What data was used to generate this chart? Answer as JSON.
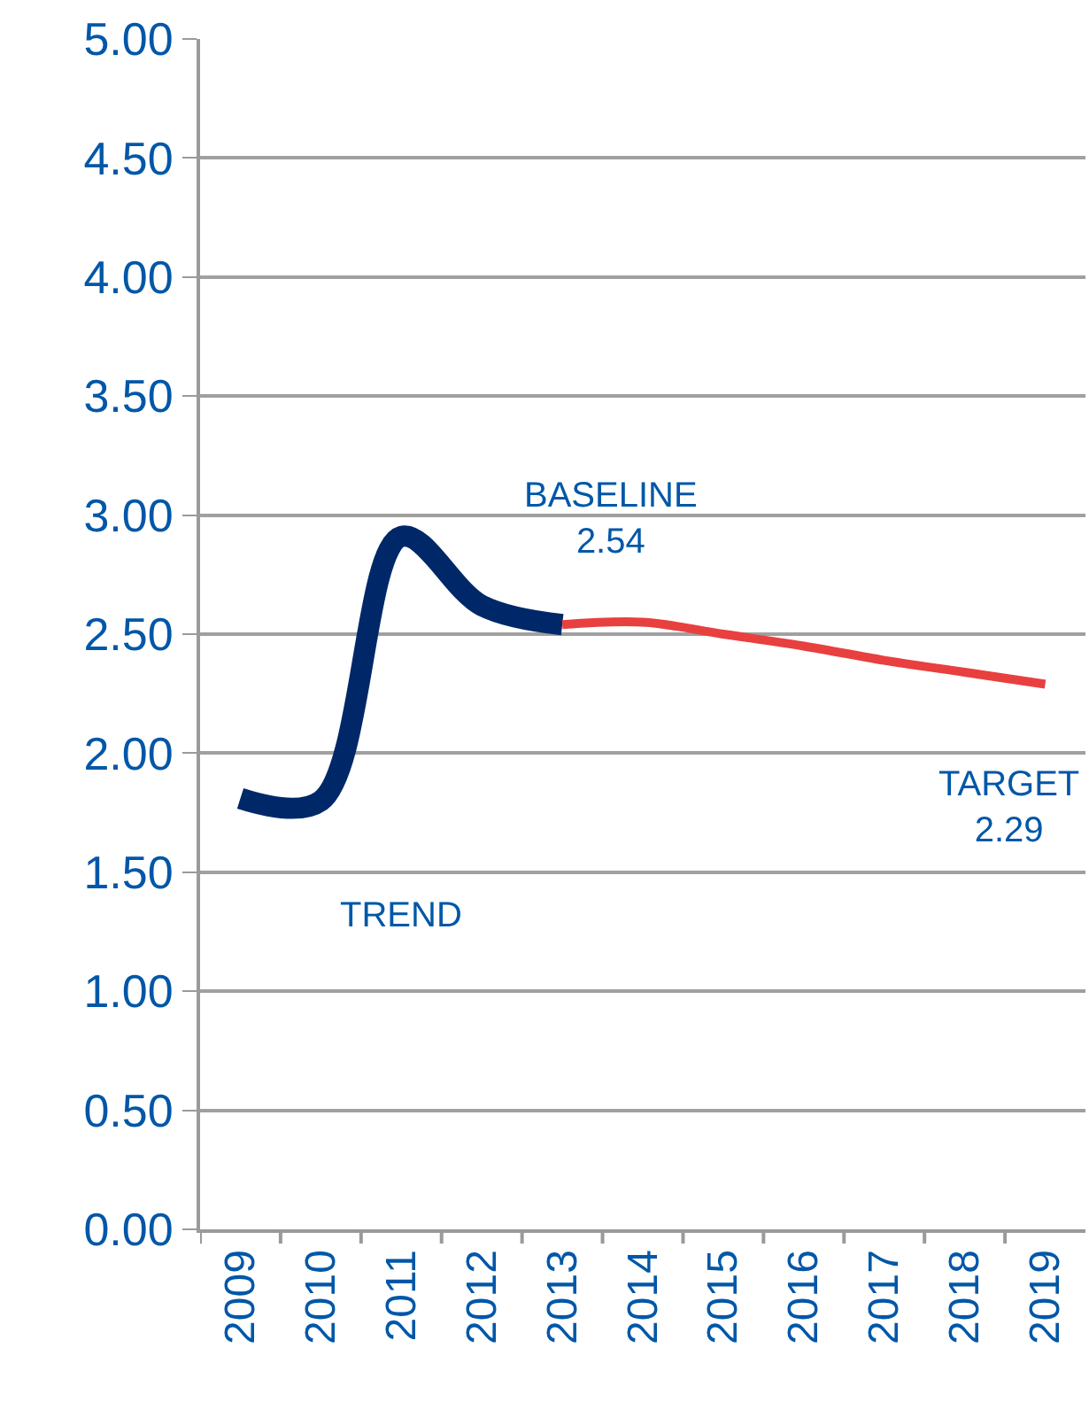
{
  "chart_data": {
    "type": "line",
    "categories": [
      "2009",
      "2010",
      "2011",
      "2012",
      "2013",
      "2014",
      "2015",
      "2016",
      "2017",
      "2018",
      "2019"
    ],
    "series": [
      {
        "name": "TREND",
        "color": "#002868",
        "values": [
          1.81,
          1.8,
          2.91,
          2.62,
          2.54,
          null,
          null,
          null,
          null,
          null,
          null
        ]
      },
      {
        "color": "#e8403f",
        "values": [
          null,
          null,
          null,
          null,
          2.54,
          2.55,
          2.5,
          2.45,
          2.39,
          2.34,
          2.29
        ]
      }
    ],
    "ylim": [
      0,
      5
    ],
    "yticks": [
      {
        "value": 0,
        "label": "0.00"
      },
      {
        "value": 0.5,
        "label": "0.50"
      },
      {
        "value": 1,
        "label": "1.00"
      },
      {
        "value": 1.5,
        "label": "1.50"
      },
      {
        "value": 2,
        "label": "2.00"
      },
      {
        "value": 2.5,
        "label": "2.50"
      },
      {
        "value": 3,
        "label": "3.00"
      },
      {
        "value": 3.5,
        "label": "3.50"
      },
      {
        "value": 4,
        "label": "4.00"
      },
      {
        "value": 4.5,
        "label": "4.50"
      },
      {
        "value": 5,
        "label": "5.00"
      }
    ],
    "grid": "y",
    "legend": false,
    "annotations": [
      {
        "text": "BASELINE\n2.54",
        "x": "2013",
        "y": 2.54
      },
      {
        "text": "TARGET\n2.29",
        "x": "2019",
        "y": 2.29
      }
    ]
  }
}
